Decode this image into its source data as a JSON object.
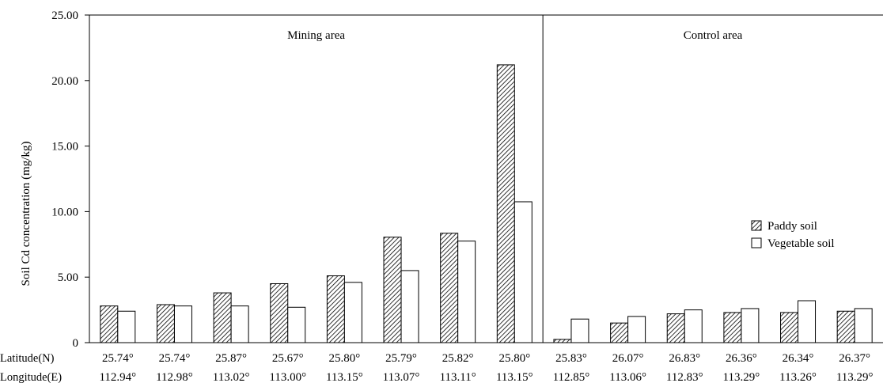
{
  "chart_data": {
    "type": "bar",
    "ylabel": "Soil Cd concentration (mg/kg)",
    "ylim": [
      0,
      25
    ],
    "yticks": [
      "0",
      "5.00",
      "10.00",
      "15.00",
      "20.00",
      "25.00"
    ],
    "grid": false,
    "legend_position": "right",
    "row_labels": {
      "latitude": "Latitude(N)",
      "longitude": "Longitude(E)"
    },
    "latitudes": [
      "25.74°",
      "25.74°",
      "25.87°",
      "25.67°",
      "25.80°",
      "25.79°",
      "25.82°",
      "25.80°",
      "25.83°",
      "26.07°",
      "26.83°",
      "26.36°",
      "26.34°",
      "26.37°"
    ],
    "longitudes": [
      "112.94°",
      "112.98°",
      "113.02°",
      "113.00°",
      "113.15°",
      "113.07°",
      "113.11°",
      "113.15°",
      "112.85°",
      "113.06°",
      "112.83°",
      "113.29°",
      "113.26°",
      "113.29°"
    ],
    "areas": [
      {
        "label": "Mining area",
        "count": 8
      },
      {
        "label": "Control area",
        "count": 6
      }
    ],
    "series": [
      {
        "name": "Paddy soil",
        "pattern": "hatched",
        "values": [
          2.8,
          2.9,
          3.8,
          4.5,
          5.1,
          8.05,
          8.35,
          21.2,
          0.25,
          1.5,
          2.2,
          2.3,
          2.3,
          2.4
        ]
      },
      {
        "name": "Vegetable soil",
        "pattern": "white",
        "values": [
          2.4,
          2.8,
          2.8,
          2.7,
          4.6,
          5.5,
          7.75,
          10.75,
          1.8,
          2.0,
          2.5,
          2.6,
          3.2,
          2.6
        ]
      }
    ]
  }
}
